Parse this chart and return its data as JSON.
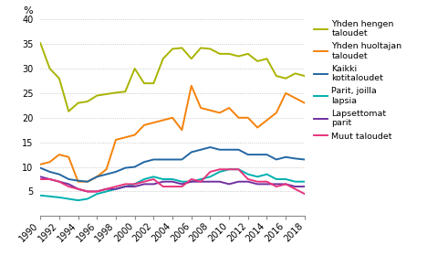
{
  "years": [
    1990,
    1991,
    1992,
    1993,
    1994,
    1995,
    1996,
    1997,
    1998,
    1999,
    2000,
    2001,
    2002,
    2003,
    2004,
    2005,
    2006,
    2007,
    2008,
    2009,
    2010,
    2011,
    2012,
    2013,
    2014,
    2015,
    2016,
    2017,
    2018
  ],
  "yhden_hengen": [
    35.2,
    30.0,
    28.0,
    21.3,
    23.0,
    23.3,
    24.5,
    24.8,
    25.1,
    25.3,
    30.0,
    27.0,
    27.0,
    32.0,
    34.0,
    34.2,
    32.0,
    34.2,
    34.0,
    33.0,
    33.0,
    32.5,
    33.0,
    31.5,
    32.0,
    28.5,
    28.0,
    29.0,
    28.5
  ],
  "yhden_huoltajan": [
    10.5,
    11.0,
    12.5,
    12.0,
    7.0,
    7.0,
    8.0,
    9.5,
    15.5,
    16.0,
    16.5,
    18.5,
    19.0,
    19.5,
    20.0,
    17.5,
    26.5,
    22.0,
    21.5,
    21.0,
    22.0,
    20.0,
    20.0,
    18.0,
    19.5,
    21.0,
    25.0,
    24.0,
    23.0
  ],
  "kaikki": [
    9.8,
    9.0,
    8.5,
    7.5,
    7.2,
    7.0,
    8.0,
    8.5,
    9.0,
    9.8,
    10.0,
    11.0,
    11.5,
    11.5,
    11.5,
    11.5,
    13.0,
    13.5,
    14.0,
    13.5,
    13.5,
    13.5,
    12.5,
    12.5,
    12.5,
    11.5,
    12.0,
    11.7,
    11.5
  ],
  "parit_lapsia": [
    4.2,
    4.0,
    3.8,
    3.5,
    3.2,
    3.5,
    4.5,
    5.0,
    5.5,
    6.0,
    6.5,
    7.5,
    8.0,
    7.5,
    7.5,
    7.0,
    7.0,
    7.5,
    8.0,
    9.0,
    9.5,
    9.5,
    8.5,
    8.0,
    8.5,
    7.5,
    7.5,
    7.0,
    7.0
  ],
  "lapsettomat": [
    8.0,
    7.5,
    7.0,
    6.5,
    5.5,
    5.0,
    5.0,
    5.5,
    5.5,
    6.0,
    6.0,
    6.5,
    6.5,
    7.0,
    7.0,
    6.5,
    7.0,
    7.0,
    7.0,
    7.0,
    6.5,
    7.0,
    7.0,
    6.5,
    6.5,
    6.5,
    6.5,
    6.0,
    6.0
  ],
  "muut": [
    7.5,
    7.5,
    7.0,
    6.0,
    5.5,
    5.0,
    5.0,
    5.5,
    6.0,
    6.5,
    6.5,
    7.0,
    7.5,
    6.0,
    6.0,
    6.0,
    7.5,
    7.0,
    9.0,
    9.5,
    9.5,
    9.5,
    7.5,
    7.0,
    7.0,
    6.0,
    6.5,
    5.5,
    4.5
  ],
  "color_yhden_hengen": "#a8b400",
  "color_yhden_huoltajan": "#f5820a",
  "color_kaikki": "#2367a4",
  "color_parit_lapsia": "#00b0b0",
  "color_lapsettomat": "#7030a0",
  "color_muut": "#e8347c",
  "ylabel": "%",
  "ylim": [
    0,
    40
  ],
  "yticks": [
    0,
    5,
    10,
    15,
    20,
    25,
    30,
    35,
    40
  ],
  "xticks": [
    1990,
    1992,
    1994,
    1996,
    1998,
    2000,
    2002,
    2004,
    2006,
    2008,
    2010,
    2012,
    2014,
    2016,
    2018
  ],
  "legend_labels": [
    "Yhden hengen\ntaloudet",
    "Yhden huoltajan\ntaloudet",
    "Kaikki\nkotitaloudet",
    "Parit, joilla\nlapsia",
    "Lapsettomat\nparit",
    "Muut taloudet"
  ],
  "linewidth": 1.4,
  "background_color": "#ffffff"
}
